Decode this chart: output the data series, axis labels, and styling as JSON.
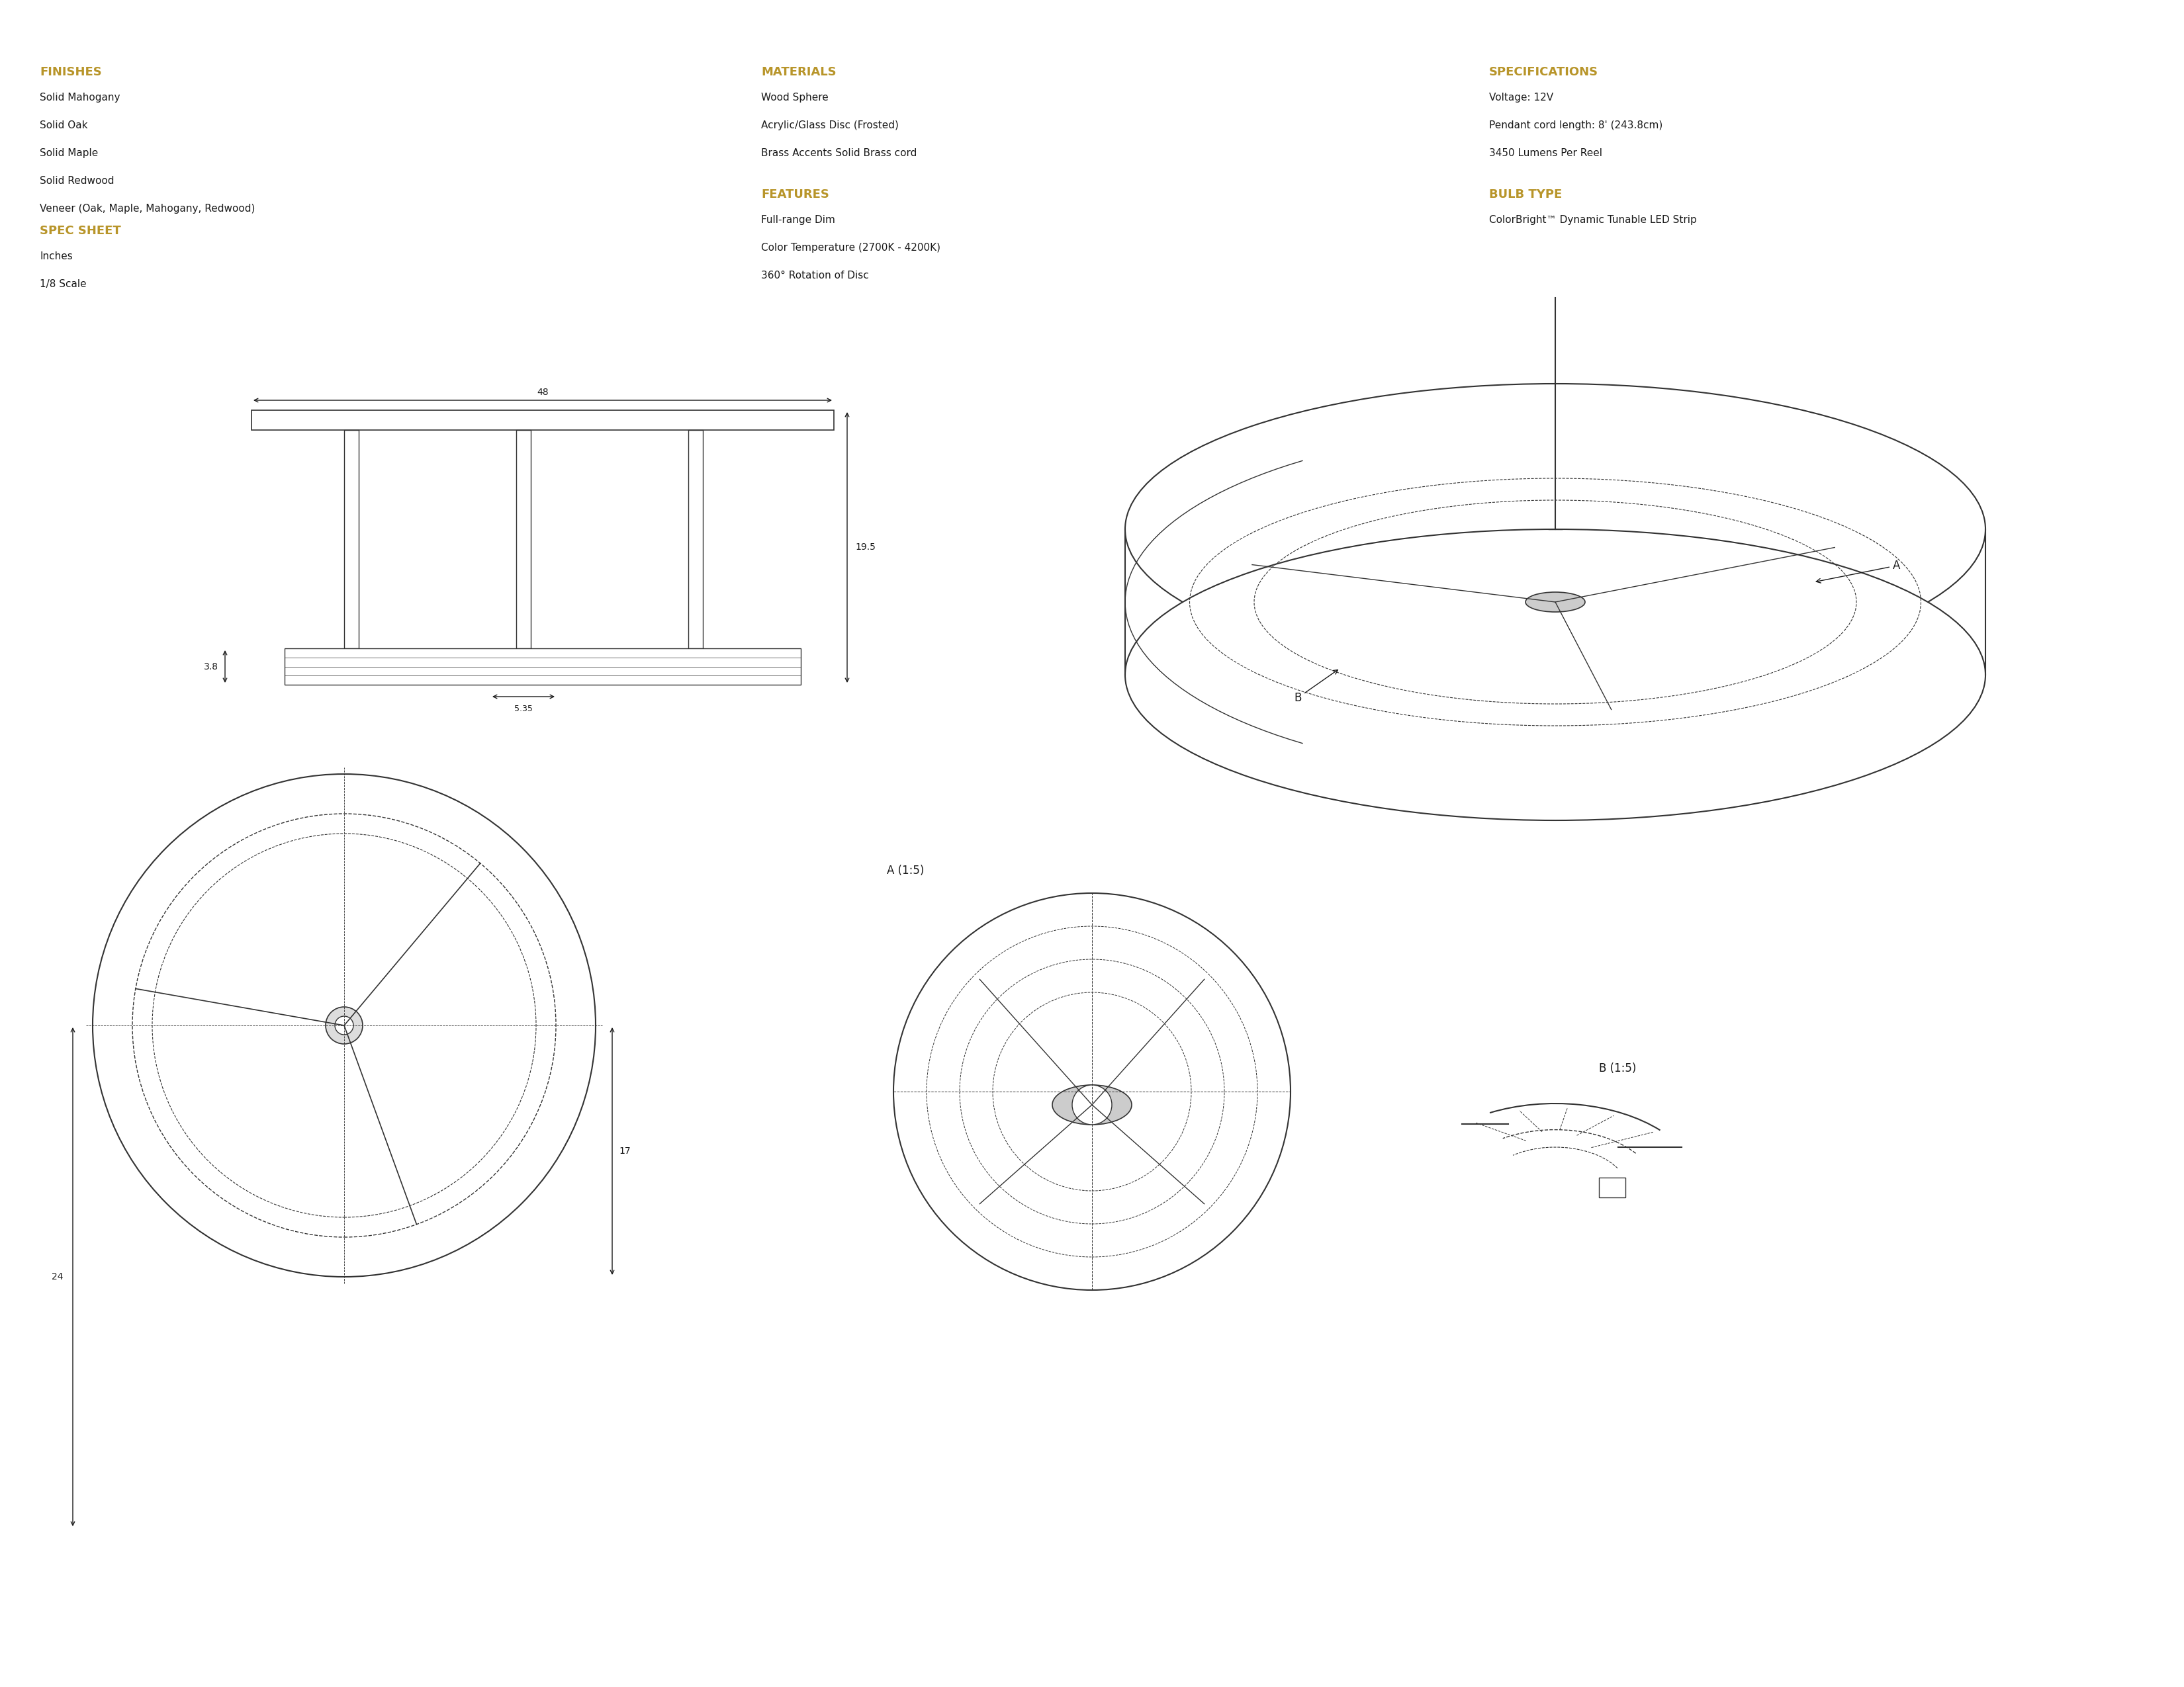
{
  "bg_color": "#ffffff",
  "gold_color": "#B8952A",
  "dark_color": "#1a1a1a",
  "gray_color": "#555555",
  "line_color": "#333333",
  "finishes_header": "FINISHES",
  "finishes_items": [
    "Solid Mahogany",
    "Solid Oak",
    "Solid Maple",
    "Solid Redwood",
    "Veneer (Oak, Maple, Mahogany, Redwood)"
  ],
  "spec_header": "SPEC SHEET",
  "spec_items": [
    "Inches",
    "1/8 Scale"
  ],
  "materials_header": "MATERIALS",
  "materials_items": [
    "Wood Sphere",
    "Acrylic/Glass Disc (Frosted)",
    "Brass Accents Solid Brass cord"
  ],
  "features_header": "FEATURES",
  "features_items": [
    "Full-range Dim",
    "Color Temperature (2700K - 4200K)",
    "360° Rotation of Disc"
  ],
  "specs_header": "SPECIFICATIONS",
  "specs_items": [
    "Voltage: 12V",
    "Pendant cord length: 8' (243.8cm)",
    "3450 Lumens Per Reel"
  ],
  "bulb_header": "BULB TYPE",
  "bulb_items": [
    "ColorBright™ Dynamic Tunable LED Strip"
  ],
  "dim_48": "48",
  "dim_19_5": "19.5",
  "dim_3_8": "3.8",
  "dim_5_35": "5.35",
  "dim_17": "17",
  "dim_24": "24"
}
